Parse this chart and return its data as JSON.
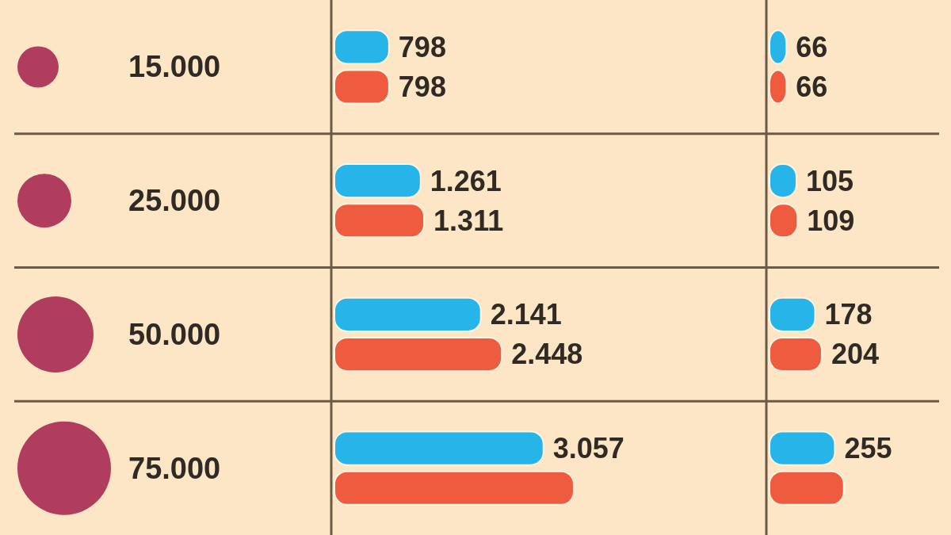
{
  "chart_data": [
    {
      "type": "bar",
      "orientation": "horizontal",
      "categories": [
        "15.000",
        "25.000",
        "50.000",
        "75.000"
      ],
      "tick_labels": "y",
      "series": [
        {
          "color": "#27b5e9",
          "values": [
            798,
            1261,
            2141,
            3057
          ],
          "value_labels": [
            "798",
            "1.261",
            "2.141",
            "3.057"
          ]
        },
        {
          "color": "#ef5b3f",
          "values": [
            798,
            1311,
            2448,
            3500
          ],
          "value_labels": [
            "798",
            "1.311",
            "2.448",
            null
          ]
        }
      ]
    },
    {
      "type": "bar",
      "orientation": "horizontal",
      "categories": [
        null,
        null,
        null,
        null
      ],
      "series": [
        {
          "color": "#27b5e9",
          "values": [
            66,
            105,
            178,
            255
          ],
          "value_labels": [
            "66",
            "105",
            "178",
            "255"
          ]
        },
        {
          "color": "#ef5b3f",
          "values": [
            66,
            109,
            204,
            290
          ],
          "value_labels": [
            "66",
            "109",
            "204",
            null
          ]
        }
      ]
    }
  ]
}
